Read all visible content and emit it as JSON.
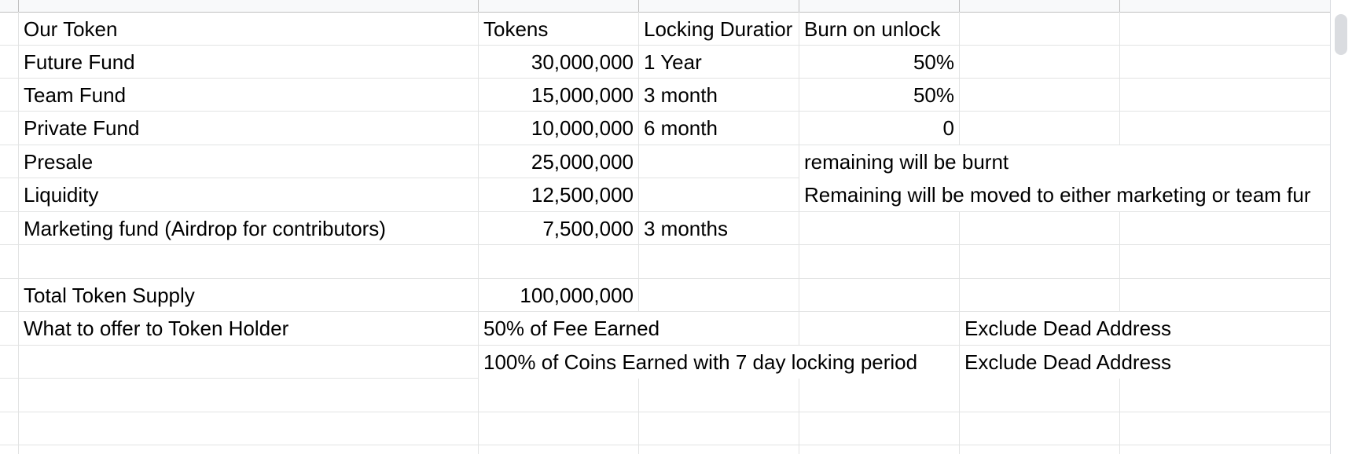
{
  "rows": [
    {
      "a": "Our Token",
      "b": "Tokens",
      "c": "Locking Duratior",
      "d": "Burn on unlock",
      "e": ""
    },
    {
      "a": "Future Fund",
      "b": "30,000,000",
      "c": "1 Year",
      "d": "50%",
      "e": ""
    },
    {
      "a": "Team Fund",
      "b": "15,000,000",
      "c": "3 month",
      "d": "50%",
      "e": ""
    },
    {
      "a": "Private Fund",
      "b": "10,000,000",
      "c": "6 month",
      "d": "0",
      "e": ""
    },
    {
      "a": "Presale",
      "b": "25,000,000",
      "c": "",
      "d": "remaining will be burnt",
      "e": ""
    },
    {
      "a": "Liquidity",
      "b": "12,500,000",
      "c": "",
      "d": "Remaining will be moved to either marketing or team fur",
      "e": ""
    },
    {
      "a": "Marketing fund (Airdrop for contributors)",
      "b": "7,500,000",
      "c": "3 months",
      "d": "",
      "e": ""
    },
    {
      "a": "",
      "b": "",
      "c": "",
      "d": "",
      "e": ""
    },
    {
      "a": "Total Token Supply",
      "b": "100,000,000",
      "c": "",
      "d": "",
      "e": ""
    },
    {
      "a": "What to offer to Token Holder",
      "b": "50% of Fee Earned",
      "c": "",
      "d": "",
      "e": "Exclude Dead Address"
    },
    {
      "a": "",
      "b": "100% of Coins Earned with 7 day locking period",
      "c": "",
      "d": "",
      "e": "Exclude Dead Address"
    }
  ]
}
